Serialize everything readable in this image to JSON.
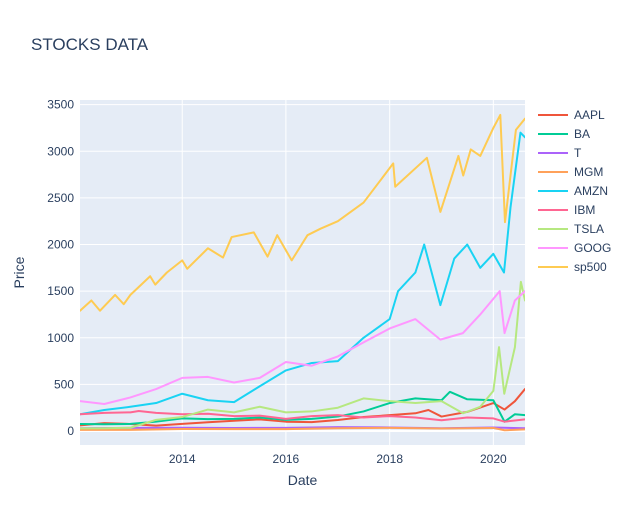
{
  "chart_data": {
    "type": "line",
    "title": "STOCKS DATA",
    "xlabel": "Date",
    "ylabel": "Price",
    "xlim": [
      "2012-01-12",
      "2020-08-11"
    ],
    "ylim": [
      -150,
      3550
    ],
    "x_ticks": [
      "2014",
      "2016",
      "2018",
      "2020"
    ],
    "y_ticks": [
      0,
      500,
      1000,
      1500,
      2000,
      2500,
      3000,
      3500
    ],
    "grid": true,
    "legend_position": "right",
    "plot_background": "#e5ecf6",
    "series": [
      {
        "name": "AAPL",
        "color": "#ef553b",
        "x": [
          "2012-01-12",
          "2012-07-01",
          "2013-01-01",
          "2013-07-01",
          "2014-01-01",
          "2014-07-01",
          "2015-01-01",
          "2015-07-01",
          "2016-01-01",
          "2016-07-01",
          "2017-01-01",
          "2017-07-01",
          "2018-01-01",
          "2018-07-01",
          "2018-10-01",
          "2019-01-01",
          "2019-07-01",
          "2020-01-01",
          "2020-03-20",
          "2020-06-01",
          "2020-08-11"
        ],
        "y": [
          60,
          85,
          75,
          58,
          77,
          94,
          110,
          125,
          100,
          95,
          118,
          150,
          170,
          190,
          225,
          155,
          205,
          300,
          230,
          320,
          450
        ]
      },
      {
        "name": "BA",
        "color": "#00cc96",
        "x": [
          "2012-01-12",
          "2012-07-01",
          "2013-01-01",
          "2013-07-01",
          "2014-01-01",
          "2014-07-01",
          "2015-01-01",
          "2015-07-01",
          "2016-01-01",
          "2016-07-01",
          "2017-01-01",
          "2017-07-01",
          "2018-01-01",
          "2018-07-01",
          "2019-01-01",
          "2019-03-01",
          "2019-07-01",
          "2020-01-01",
          "2020-03-20",
          "2020-06-01",
          "2020-08-11"
        ],
        "y": [
          75,
          72,
          76,
          100,
          135,
          128,
          130,
          145,
          120,
          130,
          155,
          210,
          300,
          350,
          330,
          420,
          340,
          330,
          100,
          180,
          170
        ]
      },
      {
        "name": "T",
        "color": "#ab63fa",
        "x": [
          "2012-01-12",
          "2013-01-01",
          "2014-01-01",
          "2015-01-01",
          "2016-01-01",
          "2017-01-01",
          "2018-01-01",
          "2019-01-01",
          "2020-01-01",
          "2020-08-11"
        ],
        "y": [
          30,
          34,
          35,
          33,
          34,
          42,
          38,
          30,
          38,
          30
        ]
      },
      {
        "name": "MGM",
        "color": "#ffa15a",
        "x": [
          "2012-01-12",
          "2013-01-01",
          "2014-01-01",
          "2015-01-01",
          "2016-01-01",
          "2017-01-01",
          "2018-01-01",
          "2019-01-01",
          "2020-01-01",
          "2020-03-20",
          "2020-08-11"
        ],
        "y": [
          12,
          12,
          22,
          20,
          20,
          30,
          34,
          27,
          33,
          8,
          18
        ]
      },
      {
        "name": "AMZN",
        "color": "#19d3f3",
        "x": [
          "2012-01-12",
          "2012-07-01",
          "2013-01-01",
          "2013-07-01",
          "2014-01-01",
          "2014-07-01",
          "2015-01-01",
          "2015-07-01",
          "2016-01-01",
          "2016-07-01",
          "2017-01-01",
          "2017-07-01",
          "2018-01-01",
          "2018-03-01",
          "2018-07-01",
          "2018-09-01",
          "2018-12-24",
          "2019-04-01",
          "2019-07-01",
          "2019-10-01",
          "2020-01-01",
          "2020-03-16",
          "2020-05-01",
          "2020-07-10",
          "2020-08-11"
        ],
        "y": [
          180,
          225,
          260,
          300,
          400,
          330,
          310,
          480,
          650,
          730,
          750,
          1000,
          1200,
          1500,
          1700,
          2000,
          1350,
          1850,
          2000,
          1750,
          1900,
          1700,
          2400,
          3200,
          3150
        ]
      },
      {
        "name": "IBM",
        "color": "#ff6692",
        "x": [
          "2012-01-12",
          "2012-07-01",
          "2013-01-01",
          "2013-03-01",
          "2013-07-01",
          "2014-01-01",
          "2014-07-01",
          "2015-01-01",
          "2015-07-01",
          "2016-01-01",
          "2016-07-01",
          "2017-01-01",
          "2017-07-01",
          "2018-01-01",
          "2018-07-01",
          "2019-01-01",
          "2019-07-01",
          "2020-01-01",
          "2020-03-20",
          "2020-08-11"
        ],
        "y": [
          180,
          195,
          200,
          215,
          195,
          180,
          185,
          160,
          165,
          130,
          160,
          170,
          145,
          160,
          145,
          115,
          145,
          135,
          100,
          125
        ]
      },
      {
        "name": "TSLA",
        "color": "#b6e880",
        "x": [
          "2012-01-12",
          "2012-07-01",
          "2013-01-01",
          "2013-07-01",
          "2014-01-01",
          "2014-07-01",
          "2015-01-01",
          "2015-07-01",
          "2016-01-01",
          "2016-07-01",
          "2017-01-01",
          "2017-07-01",
          "2018-01-01",
          "2018-07-01",
          "2019-01-01",
          "2019-06-01",
          "2019-10-01",
          "2020-01-01",
          "2020-02-10",
          "2020-03-18",
          "2020-06-01",
          "2020-07-13",
          "2020-08-11"
        ],
        "y": [
          28,
          30,
          35,
          120,
          150,
          230,
          200,
          260,
          200,
          210,
          250,
          350,
          320,
          300,
          320,
          190,
          260,
          430,
          900,
          400,
          900,
          1600,
          1400
        ]
      },
      {
        "name": "GOOG",
        "color": "#ff97ff",
        "x": [
          "2012-01-12",
          "2012-07-01",
          "2013-01-01",
          "2013-07-01",
          "2014-01-01",
          "2014-07-01",
          "2015-01-01",
          "2015-07-01",
          "2016-01-01",
          "2016-07-01",
          "2017-01-01",
          "2017-07-01",
          "2018-01-01",
          "2018-07-01",
          "2018-12-24",
          "2019-06-01",
          "2019-10-01",
          "2020-02-15",
          "2020-03-20",
          "2020-06-01",
          "2020-08-11"
        ],
        "y": [
          320,
          290,
          360,
          450,
          570,
          580,
          520,
          570,
          740,
          700,
          800,
          950,
          1100,
          1200,
          980,
          1050,
          1250,
          1500,
          1050,
          1400,
          1500
        ]
      },
      {
        "name": "sp500",
        "color": "#fecb52",
        "x": [
          "2012-01-12",
          "2012-04-01",
          "2012-06-01",
          "2012-09-15",
          "2012-11-15",
          "2013-01-01",
          "2013-05-20",
          "2013-06-25",
          "2013-09-15",
          "2014-01-01",
          "2014-02-05",
          "2014-07-01",
          "2014-10-15",
          "2014-12-15",
          "2015-05-20",
          "2015-08-25",
          "2015-11-01",
          "2016-02-11",
          "2016-06-01",
          "2016-09-01",
          "2017-01-01",
          "2017-07-01",
          "2018-01-26",
          "2018-02-09",
          "2018-09-20",
          "2018-12-24",
          "2019-04-30",
          "2019-06-03",
          "2019-07-26",
          "2019-10-01",
          "2020-01-01",
          "2020-02-19",
          "2020-03-23",
          "2020-06-08",
          "2020-08-11"
        ],
        "y": [
          1290,
          1400,
          1290,
          1460,
          1360,
          1460,
          1660,
          1570,
          1700,
          1830,
          1740,
          1960,
          1860,
          2080,
          2130,
          1870,
          2100,
          1830,
          2100,
          2170,
          2250,
          2450,
          2870,
          2620,
          2930,
          2350,
          2950,
          2740,
          3020,
          2950,
          3250,
          3390,
          2240,
          3230,
          3350
        ]
      }
    ]
  }
}
